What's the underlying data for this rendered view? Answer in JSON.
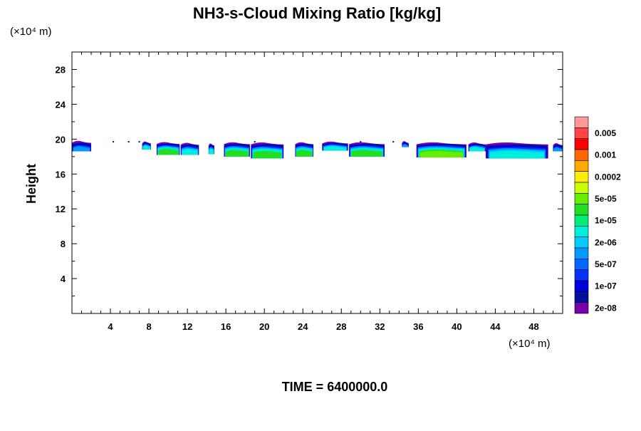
{
  "chart_data": {
    "type": "heatmap",
    "title": "NH3-s-Cloud Mixing Ratio [kg/kg]",
    "xlabel": "",
    "ylabel": "Height",
    "x_unit": "(×10⁴ m)",
    "y_unit": "(×10⁴ m)",
    "xlim": [
      0,
      51
    ],
    "ylim": [
      0,
      30
    ],
    "x_ticks": [
      "4",
      "8",
      "12",
      "16",
      "20",
      "24",
      "28",
      "32",
      "36",
      "40",
      "44",
      "48"
    ],
    "y_ticks": [
      "4",
      "8",
      "12",
      "16",
      "20",
      "24",
      "28"
    ],
    "colorbar": {
      "labels": [
        "0.005",
        "0.001",
        "0.0002",
        "5e-05",
        "1e-05",
        "2e-06",
        "5e-07",
        "1e-07",
        "2e-08"
      ],
      "colors": [
        "#ff9999",
        "#ff4444",
        "#ff0000",
        "#ff6600",
        "#ffaa00",
        "#ffee00",
        "#ccff00",
        "#66ee00",
        "#22dd22",
        "#00ee77",
        "#00eedd",
        "#00ccff",
        "#0099ff",
        "#0066ff",
        "#0033ff",
        "#0000dd",
        "#001199",
        "#7700aa"
      ]
    },
    "cloud_layer": {
      "height_range": [
        17.8,
        20
      ],
      "segments": [
        {
          "x": [
            0,
            2
          ],
          "y": [
            18.6,
            19.9
          ],
          "max_level": "1e-07"
        },
        {
          "x": [
            7.3,
            8.2
          ],
          "y": [
            18.8,
            19.8
          ],
          "max_level": "5e-07"
        },
        {
          "x": [
            8.8,
            11.2
          ],
          "y": [
            18.2,
            19.8
          ],
          "max_level": "2e-06"
        },
        {
          "x": [
            11.3,
            13.2
          ],
          "y": [
            18.2,
            19.7
          ],
          "max_level": "5e-07"
        },
        {
          "x": [
            14.2,
            14.8
          ],
          "y": [
            18.3,
            19.6
          ],
          "max_level": "5e-07"
        },
        {
          "x": [
            15.8,
            18.5
          ],
          "y": [
            18.0,
            19.8
          ],
          "max_level": "2e-06"
        },
        {
          "x": [
            18.6,
            22.0
          ],
          "y": [
            17.8,
            19.8
          ],
          "max_level": "2e-06"
        },
        {
          "x": [
            23.2,
            25.1
          ],
          "y": [
            18.0,
            19.8
          ],
          "max_level": "2e-06"
        },
        {
          "x": [
            26.0,
            28.7
          ],
          "y": [
            18.7,
            19.8
          ],
          "max_level": "5e-07"
        },
        {
          "x": [
            28.8,
            32.5
          ],
          "y": [
            18.0,
            19.8
          ],
          "max_level": "2e-06"
        },
        {
          "x": [
            34.3,
            35.0
          ],
          "y": [
            19.1,
            19.8
          ],
          "max_level": "1e-07"
        },
        {
          "x": [
            35.8,
            41.0
          ],
          "y": [
            17.9,
            19.8
          ],
          "max_level": "1e-05"
        },
        {
          "x": [
            41.2,
            43.0
          ],
          "y": [
            18.6,
            19.7
          ],
          "max_level": "5e-07"
        },
        {
          "x": [
            43.0,
            49.5
          ],
          "y": [
            17.8,
            19.8
          ],
          "max_level": "5e-07"
        },
        {
          "x": [
            50.0,
            51.0
          ],
          "y": [
            18.6,
            19.6
          ],
          "max_level": "1e-07"
        }
      ]
    },
    "grid": false,
    "legend_position": "right"
  },
  "footer": {
    "time_label": "TIME = 6400000.0"
  }
}
